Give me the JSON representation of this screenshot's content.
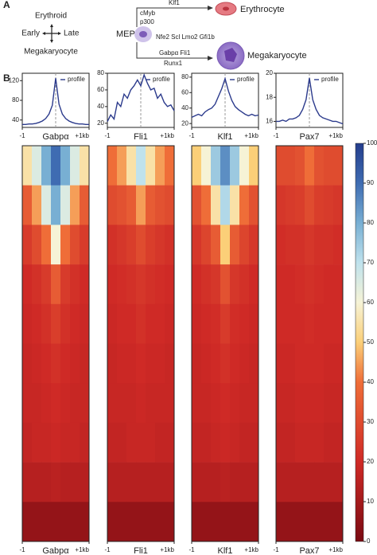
{
  "diagram": {
    "panel_a": "A",
    "panel_b": "B",
    "erythroid": "Erythroid",
    "early": "Early",
    "late": "Late",
    "megakaryocyte_axis": "Megakaryocyte",
    "mep": "MEP",
    "cmyb": "cMyb",
    "p300": "p300",
    "klf1": "Klf1",
    "erythrocyte": "Erythrocyte",
    "common_factors": "Nfe2 Scl Lmo2 Gfi1b",
    "gabpa_fli1": "Gabpα   Fli1",
    "runx1": "Runx1",
    "megakaryocyte": "Megakaryocyte"
  },
  "chart_data": [
    {
      "type": "line",
      "xlabel": "Gabpα",
      "x": [
        -1,
        -0.9,
        -0.8,
        -0.7,
        -0.6,
        -0.5,
        -0.4,
        -0.3,
        -0.2,
        -0.1,
        0,
        0.1,
        0.2,
        0.3,
        0.4,
        0.5,
        0.6,
        0.7,
        0.8,
        0.9,
        1
      ],
      "xlim": [
        -1,
        1
      ],
      "xticks": [
        -1,
        {
          "value": 1,
          "label": "+1kb"
        }
      ],
      "ylim": [
        25,
        135
      ],
      "yticks": [
        40,
        80,
        120
      ],
      "legend": "upper right",
      "series": [
        {
          "name": "profile",
          "color": "#2b3a8c",
          "values": [
            31,
            31,
            32,
            32,
            33,
            35,
            38,
            43,
            52,
            70,
            125,
            72,
            52,
            43,
            38,
            35,
            33,
            32,
            32,
            31,
            31
          ]
        }
      ]
    },
    {
      "type": "line",
      "xlabel": "Fli1",
      "x": [
        -1,
        -0.9,
        -0.8,
        -0.7,
        -0.6,
        -0.5,
        -0.4,
        -0.3,
        -0.2,
        -0.1,
        0,
        0.1,
        0.2,
        0.3,
        0.4,
        0.5,
        0.6,
        0.7,
        0.8,
        0.9,
        1
      ],
      "xlim": [
        -1,
        1
      ],
      "xticks": [
        -1,
        {
          "value": 1,
          "label": "+1kb"
        }
      ],
      "ylim": [
        15,
        80
      ],
      "yticks": [
        20,
        40,
        60,
        80
      ],
      "legend": "upper right",
      "series": [
        {
          "name": "profile",
          "color": "#2b3a8c",
          "values": [
            22,
            30,
            25,
            45,
            40,
            55,
            50,
            60,
            65,
            72,
            65,
            78,
            68,
            60,
            62,
            50,
            55,
            45,
            40,
            42,
            35
          ]
        }
      ]
    },
    {
      "type": "line",
      "xlabel": "Klf1",
      "x": [
        -1,
        -0.9,
        -0.8,
        -0.7,
        -0.6,
        -0.5,
        -0.4,
        -0.3,
        -0.2,
        -0.1,
        0,
        0.1,
        0.2,
        0.3,
        0.4,
        0.5,
        0.6,
        0.7,
        0.8,
        0.9,
        1
      ],
      "xlim": [
        -1,
        1
      ],
      "xticks": [
        -1,
        {
          "value": 1,
          "label": "+1kb"
        }
      ],
      "ylim": [
        15,
        85
      ],
      "yticks": [
        20,
        40,
        60,
        80
      ],
      "legend": "upper right",
      "series": [
        {
          "name": "profile",
          "color": "#2b3a8c",
          "values": [
            28,
            30,
            32,
            30,
            35,
            38,
            40,
            45,
            55,
            65,
            78,
            62,
            50,
            42,
            38,
            35,
            32,
            30,
            32,
            30,
            31
          ]
        }
      ]
    },
    {
      "type": "line",
      "xlabel": "Pax7",
      "x": [
        -1,
        -0.9,
        -0.8,
        -0.7,
        -0.6,
        -0.5,
        -0.4,
        -0.3,
        -0.2,
        -0.1,
        0,
        0.1,
        0.2,
        0.3,
        0.4,
        0.5,
        0.6,
        0.7,
        0.8,
        0.9,
        1
      ],
      "xlim": [
        -1,
        1
      ],
      "xticks": [
        -1,
        {
          "value": 1,
          "label": "+1kb"
        }
      ],
      "ylim": [
        15.5,
        20
      ],
      "yticks": [
        16,
        18,
        20
      ],
      "legend": "upper right",
      "series": [
        {
          "name": "profile",
          "color": "#2b3a8c",
          "values": [
            16,
            16,
            16.1,
            16,
            16.2,
            16.2,
            16.3,
            16.5,
            17,
            17.8,
            19.6,
            17.8,
            17,
            16.5,
            16.3,
            16.2,
            16.1,
            16,
            16,
            15.9,
            15.8
          ]
        }
      ]
    },
    {
      "type": "heatmap",
      "xlabel": "Gabpα",
      "xlim": [
        -1,
        1
      ],
      "xticks": [
        -1,
        {
          "value": 1,
          "label": "+1kb"
        }
      ],
      "values": [
        [
          55,
          65,
          80,
          90,
          80,
          65,
          55
        ],
        [
          35,
          45,
          65,
          80,
          65,
          45,
          35
        ],
        [
          25,
          30,
          40,
          60,
          40,
          30,
          25
        ],
        [
          20,
          22,
          25,
          35,
          25,
          22,
          20
        ],
        [
          19,
          20,
          22,
          26,
          22,
          20,
          19
        ],
        [
          18,
          19,
          20,
          22,
          20,
          19,
          18
        ],
        [
          18,
          18,
          19,
          20,
          19,
          18,
          18
        ],
        [
          17,
          18,
          18,
          19,
          18,
          18,
          17
        ],
        [
          14,
          14,
          14,
          15,
          14,
          14,
          14
        ],
        [
          6,
          6,
          6,
          6,
          6,
          6,
          6
        ]
      ]
    },
    {
      "type": "heatmap",
      "xlabel": "Fli1",
      "xlim": [
        -1,
        1
      ],
      "xticks": [
        -1,
        {
          "value": 1,
          "label": "+1kb"
        }
      ],
      "values": [
        [
          40,
          45,
          55,
          70,
          55,
          45,
          40
        ],
        [
          30,
          32,
          35,
          45,
          35,
          32,
          30
        ],
        [
          22,
          24,
          26,
          30,
          26,
          24,
          22
        ],
        [
          20,
          21,
          22,
          24,
          22,
          21,
          20
        ],
        [
          19,
          20,
          20,
          22,
          20,
          20,
          19
        ],
        [
          18,
          19,
          19,
          20,
          19,
          19,
          18
        ],
        [
          18,
          18,
          18,
          19,
          18,
          18,
          18
        ],
        [
          17,
          17,
          18,
          18,
          18,
          17,
          17
        ],
        [
          14,
          14,
          14,
          14,
          14,
          14,
          14
        ],
        [
          6,
          6,
          6,
          6,
          6,
          6,
          6
        ]
      ]
    },
    {
      "type": "heatmap",
      "xlabel": "Klf1",
      "xlim": [
        -1,
        1
      ],
      "xticks": [
        -1,
        {
          "value": 1,
          "label": "+1kb"
        }
      ],
      "values": [
        [
          50,
          60,
          75,
          85,
          75,
          60,
          50
        ],
        [
          32,
          40,
          55,
          72,
          55,
          40,
          32
        ],
        [
          24,
          28,
          35,
          50,
          35,
          28,
          24
        ],
        [
          20,
          22,
          24,
          32,
          24,
          22,
          20
        ],
        [
          19,
          20,
          21,
          25,
          21,
          20,
          19
        ],
        [
          18,
          19,
          20,
          22,
          20,
          19,
          18
        ],
        [
          18,
          18,
          19,
          20,
          19,
          18,
          18
        ],
        [
          17,
          17,
          18,
          19,
          18,
          17,
          17
        ],
        [
          14,
          14,
          14,
          15,
          14,
          14,
          14
        ],
        [
          6,
          6,
          6,
          6,
          6,
          6,
          6
        ]
      ]
    },
    {
      "type": "heatmap",
      "xlabel": "Pax7",
      "xlim": [
        -1,
        1
      ],
      "xticks": [
        -1,
        {
          "value": 1,
          "label": "+1kb"
        }
      ],
      "values": [
        [
          30,
          30,
          32,
          40,
          32,
          30,
          30
        ],
        [
          24,
          25,
          26,
          30,
          26,
          25,
          24
        ],
        [
          21,
          22,
          22,
          24,
          22,
          22,
          21
        ],
        [
          20,
          20,
          21,
          22,
          21,
          20,
          20
        ],
        [
          20,
          20,
          20,
          21,
          20,
          20,
          20
        ],
        [
          19,
          19,
          20,
          20,
          20,
          19,
          19
        ],
        [
          18,
          18,
          19,
          19,
          19,
          18,
          18
        ],
        [
          17,
          17,
          18,
          18,
          18,
          17,
          17
        ],
        [
          14,
          14,
          14,
          14,
          14,
          14,
          14
        ],
        [
          6,
          6,
          6,
          6,
          6,
          6,
          6
        ]
      ]
    },
    {
      "type": "colorbar",
      "zlim": [
        0,
        100
      ],
      "zticks": [
        0,
        10,
        20,
        30,
        40,
        50,
        60,
        70,
        80,
        90,
        100
      ]
    }
  ]
}
